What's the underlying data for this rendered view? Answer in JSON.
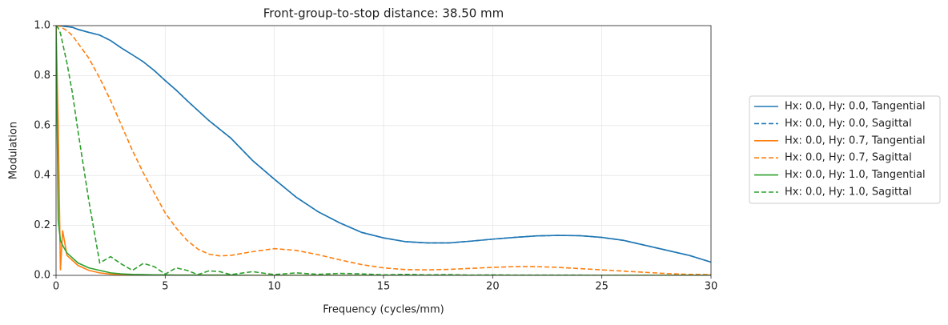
{
  "chart_data": {
    "type": "line",
    "title": "Front-group-to-stop distance: 38.50 mm",
    "x_label": "Frequency (cycles/mm)",
    "y_label": "Modulation",
    "x": [
      0,
      0.1,
      0.2,
      0.3,
      0.5,
      0.75,
      1,
      1.5,
      2,
      2.5,
      3,
      3.5,
      4,
      4.5,
      5,
      5.5,
      6,
      6.5,
      7,
      7.5,
      8,
      9,
      10,
      11,
      12,
      13,
      14,
      15,
      16,
      17,
      18,
      19,
      20,
      21,
      22,
      23,
      24,
      25,
      26,
      27,
      28,
      29,
      30
    ],
    "series": [
      {
        "name": "Hx: 0.0, Hy: 0.0, Tangential",
        "color": "#1f77b4",
        "linestyle": "solid",
        "values": [
          1,
          1,
          0.999,
          0.998,
          0.996,
          0.993,
          0.985,
          0.973,
          0.962,
          0.94,
          0.91,
          0.883,
          0.855,
          0.82,
          0.78,
          0.742,
          0.7,
          0.66,
          0.62,
          0.585,
          0.55,
          0.46,
          0.385,
          0.313,
          0.255,
          0.21,
          0.172,
          0.15,
          0.135,
          0.13,
          0.13,
          0.137,
          0.145,
          0.152,
          0.158,
          0.16,
          0.159,
          0.152,
          0.14,
          0.12,
          0.1,
          0.08,
          0.053
        ]
      },
      {
        "name": "Hx: 0.0, Hy: 0.0, Sagittal",
        "color": "#1f77b4",
        "linestyle": "dashed",
        "values": [
          1,
          1,
          0.999,
          0.998,
          0.996,
          0.993,
          0.985,
          0.973,
          0.962,
          0.94,
          0.91,
          0.883,
          0.855,
          0.82,
          0.78,
          0.742,
          0.7,
          0.66,
          0.62,
          0.585,
          0.55,
          0.46,
          0.385,
          0.313,
          0.255,
          0.21,
          0.172,
          0.15,
          0.135,
          0.13,
          0.13,
          0.137,
          0.145,
          0.152,
          0.158,
          0.16,
          0.159,
          0.152,
          0.14,
          0.12,
          0.1,
          0.08,
          0.053
        ]
      },
      {
        "name": "Hx: 0.0, Hy: 0.7, Tangential",
        "color": "#ff7f0e",
        "linestyle": "solid",
        "values": [
          1,
          0.6,
          0.02,
          0.18,
          0.08,
          0.06,
          0.04,
          0.02,
          0.01,
          0.005,
          0.003,
          0.002,
          0.002,
          0.001,
          0.001,
          0.001,
          0.001,
          0.001,
          0.001,
          0.001,
          0.001,
          0,
          0,
          0,
          0,
          0,
          0,
          0,
          0,
          0,
          0,
          0,
          0,
          0,
          0,
          0,
          0,
          0,
          0,
          0,
          0,
          0,
          0
        ]
      },
      {
        "name": "Hx: 0.0, Hy: 0.7, Sagittal",
        "color": "#ff7f0e",
        "linestyle": "dashed",
        "values": [
          1,
          0.999,
          0.997,
          0.99,
          0.98,
          0.96,
          0.93,
          0.87,
          0.79,
          0.7,
          0.6,
          0.5,
          0.41,
          0.33,
          0.25,
          0.19,
          0.14,
          0.105,
          0.085,
          0.078,
          0.08,
          0.095,
          0.107,
          0.1,
          0.083,
          0.062,
          0.043,
          0.03,
          0.023,
          0.022,
          0.024,
          0.028,
          0.032,
          0.035,
          0.035,
          0.032,
          0.027,
          0.022,
          0.017,
          0.012,
          0.007,
          0.004,
          0.003
        ]
      },
      {
        "name": "Hx: 0.0, Hy: 1.0, Tangential",
        "color": "#2ca02c",
        "linestyle": "solid",
        "values": [
          1,
          0.22,
          0.14,
          0.12,
          0.09,
          0.07,
          0.05,
          0.03,
          0.02,
          0.01,
          0.006,
          0.004,
          0.003,
          0.002,
          0.002,
          0.001,
          0.001,
          0.001,
          0.001,
          0.001,
          0.001,
          0,
          0,
          0,
          0,
          0,
          0,
          0,
          0,
          0,
          0,
          0,
          0,
          0,
          0,
          0,
          0,
          0,
          0,
          0,
          0,
          0,
          0
        ]
      },
      {
        "name": "Hx: 0.0, Hy: 1.0, Sagittal",
        "color": "#2ca02c",
        "linestyle": "dashed",
        "values": [
          1,
          0.99,
          0.97,
          0.93,
          0.85,
          0.73,
          0.58,
          0.3,
          0.05,
          0.075,
          0.045,
          0.02,
          0.048,
          0.035,
          0.005,
          0.03,
          0.02,
          0.003,
          0.018,
          0.015,
          0.003,
          0.015,
          0.003,
          0.01,
          0.004,
          0.008,
          0.006,
          0.002,
          0.004,
          0.002,
          0.003,
          0.001,
          0.002,
          0.001,
          0.001,
          0.001,
          0.001,
          0,
          0,
          0,
          0,
          0,
          0
        ]
      }
    ],
    "xlim": [
      0,
      30
    ],
    "ylim": [
      0,
      1
    ],
    "xticks": [
      0,
      5,
      10,
      15,
      20,
      25,
      30
    ],
    "yticks": [
      {
        "value": 0,
        "label": "0.0"
      },
      0.2,
      0.4,
      0.6,
      0.8,
      {
        "value": 1,
        "label": "1.0"
      }
    ],
    "grid": true,
    "legend": "outside right"
  }
}
